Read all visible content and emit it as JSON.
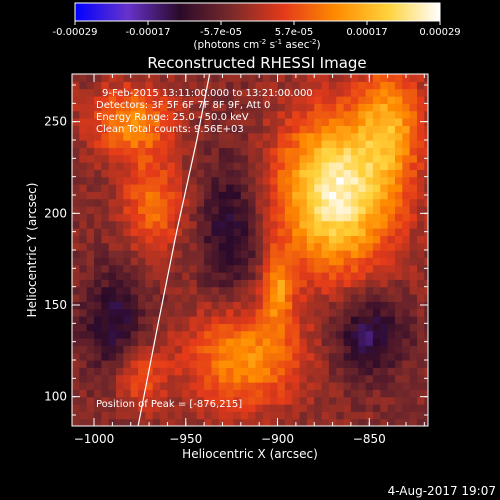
{
  "chart_data": {
    "type": "heatmap",
    "title": "Reconstructed RHESSI Image",
    "info_lines": [
      "9-Feb-2015 13:11:00.000 to 13:21:00.000",
      "Detectors: 3F 5F 6F 7F 8F 9F, Att 0",
      "Energy Range: 25.0 - 50.0 keV",
      "Clean     Total counts: 9.56E+03"
    ],
    "xlabel": "Heliocentric X (arcsec)",
    "ylabel": "Heliocentric Y (arcsec)",
    "xlim": [
      -1012,
      -818
    ],
    "ylim": [
      84,
      276
    ],
    "xticks": [
      -1000,
      -950,
      -900,
      -850
    ],
    "xtick_labels": [
      "−1000",
      "−950",
      "−900",
      "−850"
    ],
    "yticks": [
      100,
      150,
      200,
      250
    ],
    "ytick_labels": [
      "100",
      "150",
      "200",
      "250"
    ],
    "colorbar": {
      "range": [
        -0.00029,
        0.00029
      ],
      "tick_labels": [
        "-0.00029",
        "-0.00017",
        "-5.7e-05",
        "5.7e-05",
        "0.00017",
        "0.00029"
      ],
      "units_main": "(photons cm",
      "units_exp1": "-2",
      "units_mid1": " s",
      "units_exp2": "-1",
      "units_mid2": " asec",
      "units_exp3": "-2",
      "units_end": ")",
      "colors": [
        "#0000ff",
        "#6633cc",
        "#2a0a2a",
        "#7a2a2a",
        "#e43a1a",
        "#ff8a00",
        "#ffd23a",
        "#ffffff"
      ]
    },
    "peak_label": "Position of Peak = [-876,215]",
    "peak": [
      -876,
      215
    ],
    "limb_points": [
      [
        -976,
        84
      ],
      [
        -965,
        140
      ],
      [
        -955,
        190
      ],
      [
        -944,
        240
      ],
      [
        -937,
        276
      ]
    ],
    "sources": [
      {
        "x": -868,
        "y": 212,
        "amp": 1.05,
        "sx": 22,
        "sy": 30
      },
      {
        "x": -838,
        "y": 250,
        "amp": 0.55,
        "sx": 12,
        "sy": 22
      },
      {
        "x": -980,
        "y": 250,
        "amp": 0.55,
        "sx": 16,
        "sy": 14
      },
      {
        "x": -968,
        "y": 205,
        "amp": 0.45,
        "sx": 12,
        "sy": 18
      },
      {
        "x": -918,
        "y": 122,
        "amp": 0.6,
        "sx": 22,
        "sy": 20
      },
      {
        "x": -900,
        "y": 160,
        "amp": 0.5,
        "sx": 6,
        "sy": 14
      },
      {
        "x": -975,
        "y": 110,
        "amp": 0.35,
        "sx": 10,
        "sy": 12
      },
      {
        "x": -990,
        "y": 140,
        "amp": -0.35,
        "sx": 12,
        "sy": 20
      },
      {
        "x": -925,
        "y": 190,
        "amp": -0.35,
        "sx": 12,
        "sy": 30
      },
      {
        "x": -850,
        "y": 135,
        "amp": -0.4,
        "sx": 14,
        "sy": 16
      }
    ],
    "footer_date": "4-Aug-2017 19:07"
  }
}
